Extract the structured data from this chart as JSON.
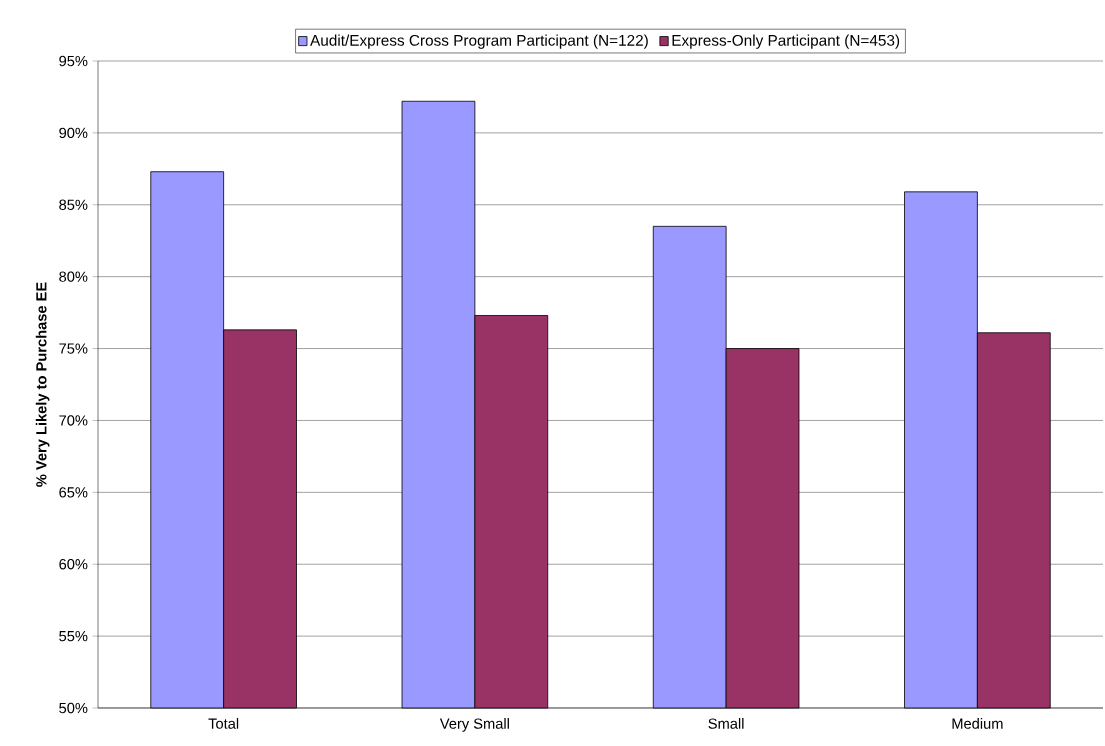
{
  "chart_data": {
    "type": "bar",
    "ylabel": "% Very Likely to Purchase EE",
    "categories": [
      "Total",
      "Very Small",
      "Small",
      "Medium"
    ],
    "series": [
      {
        "name": "Audit/Express Cross Program Participant (N=122)",
        "color": "#9999ff",
        "values": [
          87.3,
          92.2,
          83.5,
          85.9
        ]
      },
      {
        "name": "Express-Only Participant (N=453)",
        "color": "#993366",
        "values": [
          76.3,
          77.3,
          75.0,
          76.1
        ]
      }
    ],
    "ylim": [
      50,
      95
    ],
    "yticks": [
      {
        "value": 50,
        "label": "50%"
      },
      {
        "value": 55,
        "label": "55%"
      },
      {
        "value": 60,
        "label": "60%"
      },
      {
        "value": 65,
        "label": "65%"
      },
      {
        "value": 70,
        "label": "70%"
      },
      {
        "value": 75,
        "label": "75%"
      },
      {
        "value": 80,
        "label": "80%"
      },
      {
        "value": 85,
        "label": "85%"
      },
      {
        "value": 90,
        "label": "90%"
      },
      {
        "value": 95,
        "label": "95%"
      }
    ],
    "grid": "y",
    "legend": "top"
  }
}
